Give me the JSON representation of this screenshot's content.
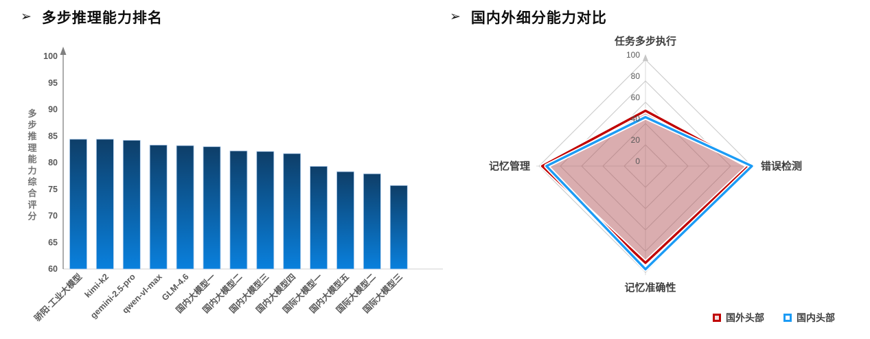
{
  "page": {
    "background": "#ffffff"
  },
  "left_panel": {
    "bullet": "➢",
    "title": "多步推理能力排名"
  },
  "right_panel": {
    "bullet": "➢",
    "title": "国内外细分能力对比"
  },
  "chart_data": [
    {
      "type": "bar",
      "title": "多步推理能力排名",
      "ylabel": "多步推理能力综合评分",
      "ylim": [
        60,
        100
      ],
      "yticks": [
        60,
        65,
        70,
        75,
        80,
        85,
        90,
        95,
        100
      ],
      "grid": false,
      "legend_position": "none",
      "categories": [
        "骄阳·工业大模型",
        "kimi-k2",
        "gemini-2.5-pro",
        "qwen-vl-max",
        "GLM-4.6",
        "国内大模型一",
        "国内大模型二",
        "国内大模型三",
        "国内大模型四",
        "国际大模型一",
        "国内大模型五",
        "国际大模型二",
        "国际大模型三"
      ],
      "values": [
        84.4,
        84.4,
        84.2,
        83.3,
        83.2,
        83.0,
        82.2,
        82.1,
        81.7,
        79.3,
        78.3,
        77.9,
        75.7
      ],
      "style": {
        "bar_gradient_top": "#0E3E68",
        "bar_gradient_bottom": "#0980DD",
        "bar_border": "#AECBEB",
        "axis_color": "#808080",
        "baseline_color": "#D9D9D9",
        "tick_label_color": "#595959",
        "ylabel_color": "#737373"
      }
    },
    {
      "type": "radar",
      "title": "国内外细分能力对比",
      "categories": [
        "任务多步执行",
        "错误检测",
        "记忆准确性",
        "记忆管理"
      ],
      "rmax": 100,
      "rticks": [
        0,
        20,
        40,
        60,
        80,
        100
      ],
      "legend_position": "bottom-right",
      "series": [
        {
          "name": "国外头部",
          "color": "#C00000",
          "fill": "rgba(181,91,96,0.5)",
          "values": [
            52,
            97,
            91,
            97
          ]
        },
        {
          "name": "国内头部",
          "color": "#1B9BF5",
          "fill": "none",
          "values": [
            46,
            100,
            97,
            93
          ]
        }
      ],
      "style": {
        "grid_color": "#C9C9C9",
        "axis_cross_color": "#D9D9D9",
        "tick_label_color": "#595959",
        "category_label_color": "#3F3F3F",
        "halo_color": "#FFFFFF"
      }
    }
  ],
  "legend": {
    "items": [
      {
        "label": "国外头部",
        "color": "#C00000",
        "swatch_fill": "#F2DCDC"
      },
      {
        "label": "国内头部",
        "color": "#1B9BF5",
        "swatch_fill": "#FFFFFF"
      }
    ]
  }
}
